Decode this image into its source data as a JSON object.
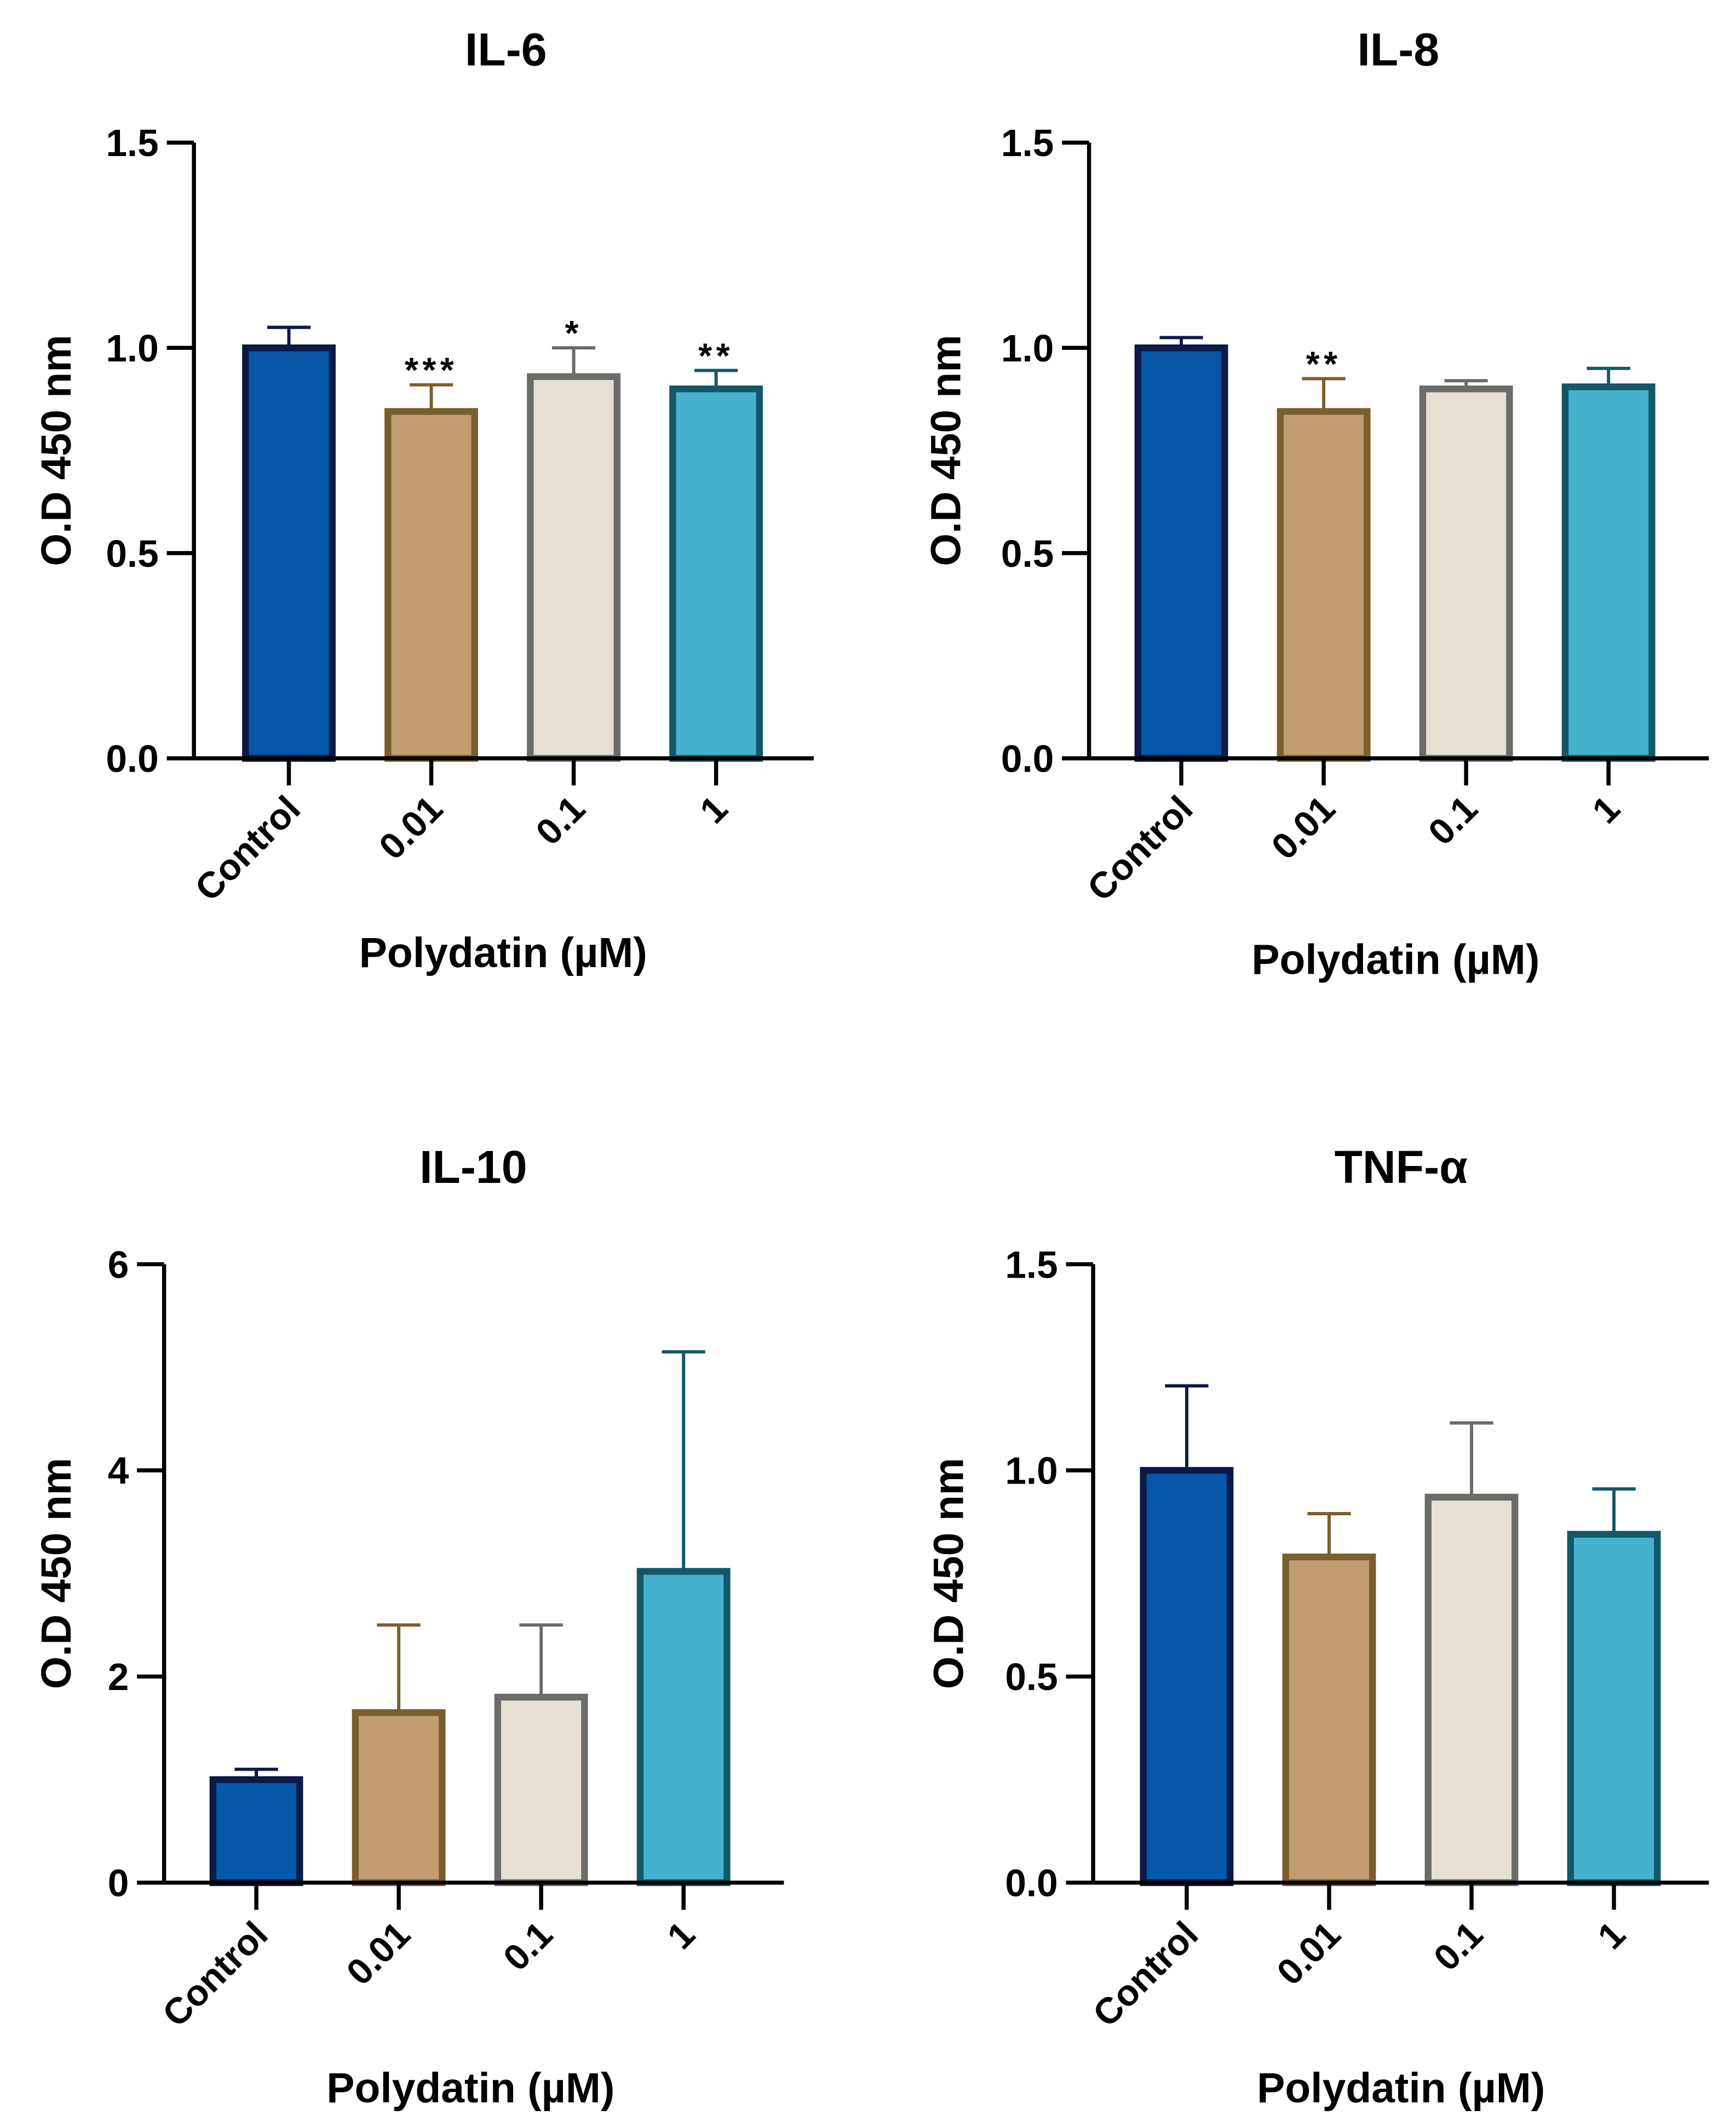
{
  "chart_data": [
    {
      "type": "bar",
      "title": "IL-6",
      "xlabel": "Polydatin (µM)",
      "ylabel": "O.D 450 nm",
      "categories": [
        "Control",
        "0.01",
        "0.1",
        "1"
      ],
      "values": [
        1.0,
        0.845,
        0.93,
        0.9
      ],
      "error_upper": [
        1.05,
        0.91,
        1.0,
        0.945
      ],
      "annotations": [
        "",
        "***",
        "*",
        "**"
      ],
      "ylim": [
        0,
        1.5
      ],
      "yticks": [
        "0.0",
        "0.5",
        "1.0",
        "1.5"
      ],
      "grid": false
    },
    {
      "type": "bar",
      "title": "IL-8",
      "xlabel": "Polydatin (µM)",
      "ylabel": "O.D 450 nm",
      "categories": [
        "Control",
        "0.01",
        "0.1",
        "1"
      ],
      "values": [
        1.0,
        0.845,
        0.9,
        0.905
      ],
      "error_upper": [
        1.025,
        0.925,
        0.92,
        0.95
      ],
      "annotations": [
        "",
        "**",
        "",
        ""
      ],
      "ylim": [
        0,
        1.5
      ],
      "yticks": [
        "0.0",
        "0.5",
        "1.0",
        "1.5"
      ],
      "grid": false
    },
    {
      "type": "bar",
      "title": "IL-10",
      "xlabel": "Polydatin (µM)",
      "ylabel": "O.D 450 nm",
      "categories": [
        "Control",
        "0.01",
        "0.1",
        "1"
      ],
      "values": [
        1.0,
        1.65,
        1.8,
        3.02
      ],
      "error_upper": [
        1.1,
        2.5,
        2.5,
        5.15
      ],
      "annotations": [
        "",
        "",
        "",
        ""
      ],
      "ylim": [
        0,
        6
      ],
      "yticks": [
        "0",
        "2",
        "4",
        "6"
      ],
      "grid": false
    },
    {
      "type": "bar",
      "title": "TNF-α",
      "xlabel": "Polydatin (µM)",
      "ylabel": "O.D 450 nm",
      "categories": [
        "Control",
        "0.01",
        "0.1",
        "1"
      ],
      "values": [
        1.0,
        0.79,
        0.935,
        0.845
      ],
      "error_upper": [
        1.205,
        0.895,
        1.115,
        0.955
      ],
      "annotations": [
        "",
        "",
        "",
        ""
      ],
      "ylim": [
        0,
        1.5
      ],
      "yticks": [
        "0.0",
        "0.5",
        "1.0",
        "1.5"
      ],
      "grid": false
    }
  ],
  "colors": {
    "fills": [
      "#0457a8",
      "#c19d6f",
      "#e6e0d4",
      "#45b1cd"
    ],
    "edges": [
      "#0b1a48",
      "#7b5e30",
      "#6b6b69",
      "#125868"
    ],
    "axis": "#000000"
  }
}
